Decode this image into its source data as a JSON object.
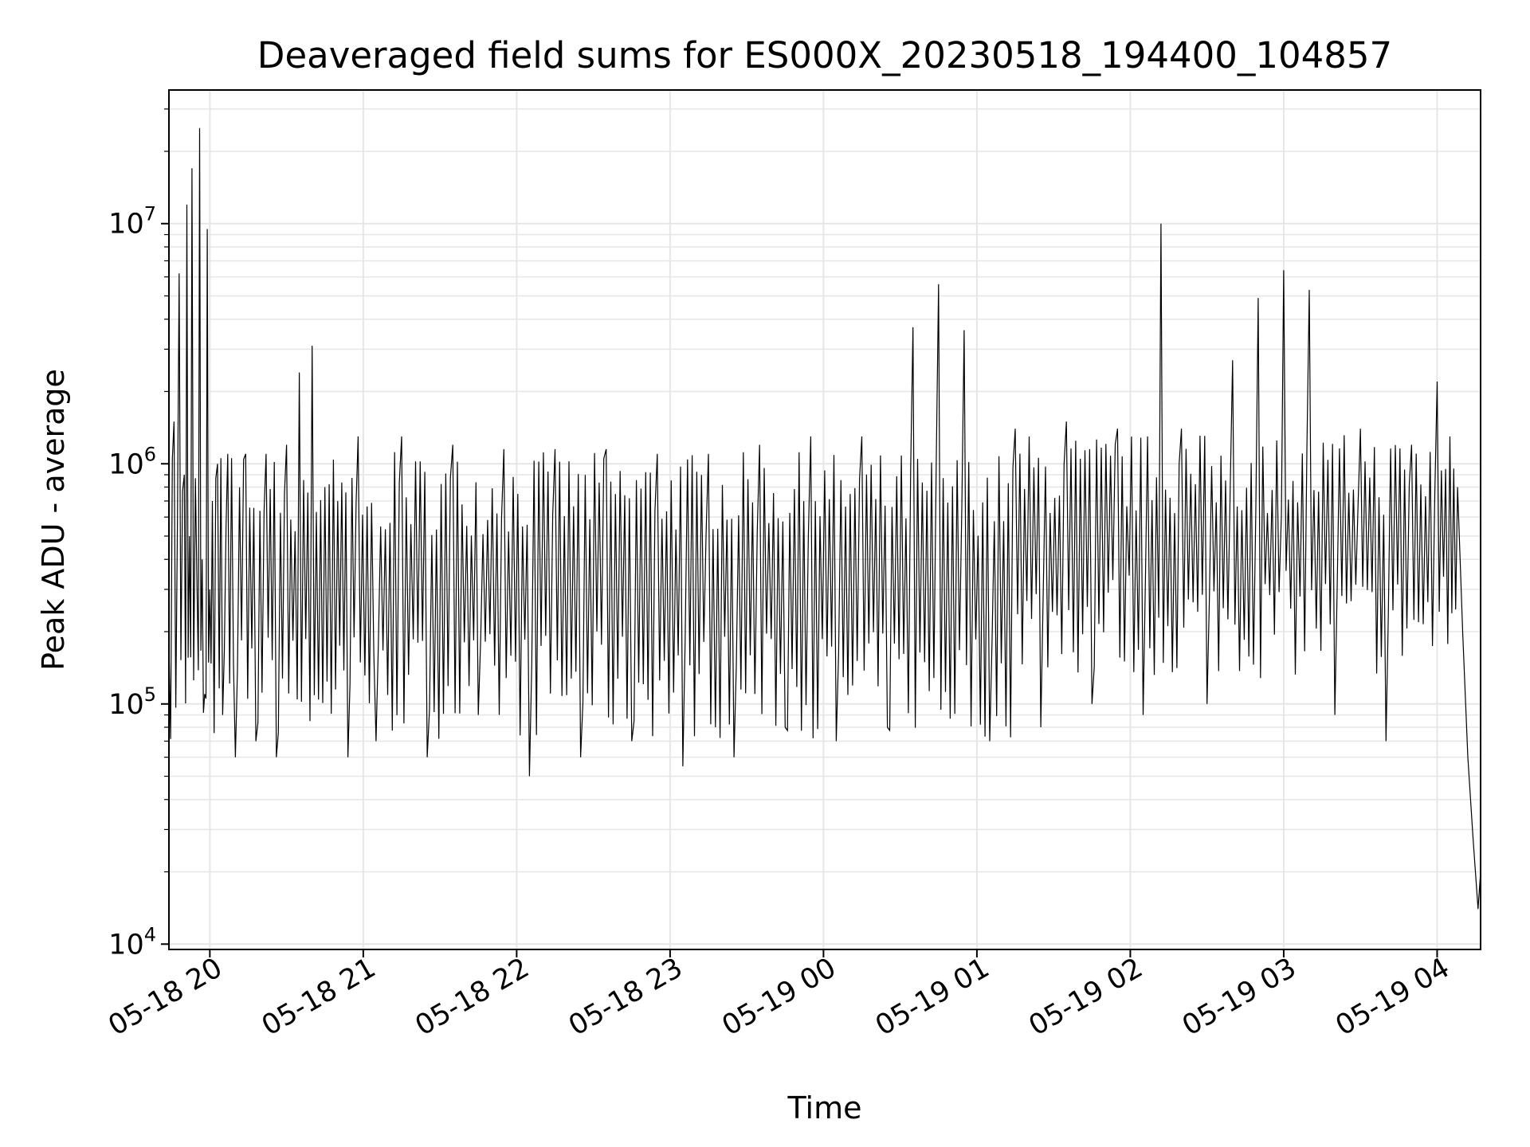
{
  "chart_data": {
    "type": "line",
    "title": "Deaveraged field sums for ES000X_20230518_194400_104857",
    "xlabel": "Time",
    "ylabel": "Peak ADU - average",
    "yscale": "log",
    "ylim": [
      9500,
      36000000
    ],
    "xlim": [
      "2023-05-18 19:44:00",
      "2023-05-19 04:17:00"
    ],
    "grid": true,
    "line_color": "#000000",
    "grid_color": "#e6e6e6",
    "x_ticks": [
      "2023-05-18 20:00",
      "2023-05-18 21:00",
      "2023-05-18 22:00",
      "2023-05-18 23:00",
      "2023-05-19 00:00",
      "2023-05-19 01:00",
      "2023-05-19 02:00",
      "2023-05-19 03:00",
      "2023-05-19 04:00"
    ],
    "x_tick_labels": [
      "05-18 20",
      "05-18 21",
      "05-18 22",
      "05-18 23",
      "05-19 00",
      "05-19 01",
      "05-19 02",
      "05-19 03",
      "05-19 04"
    ],
    "y_ticks": [
      {
        "base": "10",
        "exp": "4",
        "value": 10000
      },
      {
        "base": "10",
        "exp": "5",
        "value": 100000
      },
      {
        "base": "10",
        "exp": "6",
        "value": 1000000
      },
      {
        "base": "10",
        "exp": "7",
        "value": 10000000
      }
    ],
    "series": [
      {
        "x": [
          "2023-05-18 19:44",
          "2023-05-18 19:46",
          "2023-05-18 19:48",
          "2023-05-18 19:50",
          "2023-05-18 19:51",
          "2023-05-18 19:52",
          "2023-05-18 19:53",
          "2023-05-18 19:55",
          "2023-05-18 19:56",
          "2023-05-18 19:57",
          "2023-05-18 19:58",
          "2023-05-18 19:59",
          "2023-05-18 20:00",
          "2023-05-18 20:01",
          "2023-05-18 20:03",
          "2023-05-18 20:05",
          "2023-05-18 20:07",
          "2023-05-18 20:10",
          "2023-05-18 20:14",
          "2023-05-18 20:18",
          "2023-05-18 20:22",
          "2023-05-18 20:26",
          "2023-05-18 20:30",
          "2023-05-18 20:35",
          "2023-05-18 20:40",
          "2023-05-18 20:45",
          "2023-05-18 20:50",
          "2023-05-18 20:54",
          "2023-05-18 20:58",
          "2023-05-18 21:05",
          "2023-05-18 21:15",
          "2023-05-18 21:25",
          "2023-05-18 21:35",
          "2023-05-18 21:45",
          "2023-05-18 21:55",
          "2023-05-18 22:05",
          "2023-05-18 22:15",
          "2023-05-18 22:25",
          "2023-05-18 22:35",
          "2023-05-18 22:45",
          "2023-05-18 22:55",
          "2023-05-18 23:05",
          "2023-05-18 23:15",
          "2023-05-18 23:25",
          "2023-05-18 23:35",
          "2023-05-18 23:45",
          "2023-05-18 23:55",
          "2023-05-19 00:05",
          "2023-05-19 00:15",
          "2023-05-19 00:25",
          "2023-05-19 00:35",
          "2023-05-19 00:45",
          "2023-05-19 00:55",
          "2023-05-19 01:05",
          "2023-05-19 01:15",
          "2023-05-19 01:25",
          "2023-05-19 01:35",
          "2023-05-19 01:45",
          "2023-05-19 01:55",
          "2023-05-19 02:05",
          "2023-05-19 02:12",
          "2023-05-19 02:20",
          "2023-05-19 02:30",
          "2023-05-19 02:40",
          "2023-05-19 02:50",
          "2023-05-19 03:00",
          "2023-05-19 03:10",
          "2023-05-19 03:20",
          "2023-05-19 03:30",
          "2023-05-19 03:40",
          "2023-05-19 03:50",
          "2023-05-19 04:00",
          "2023-05-19 04:05",
          "2023-05-19 04:08",
          "2023-05-19 04:10",
          "2023-05-19 04:12",
          "2023-05-19 04:14",
          "2023-05-19 04:16",
          "2023-05-19 04:17"
        ],
        "y": [
          180000,
          1500000,
          6200000,
          900000,
          12000000,
          500000,
          17000000,
          300000,
          25000000,
          400000,
          110000,
          9500000,
          300000,
          700000,
          1000000,
          90000,
          1100000,
          60000,
          1100000,
          70000,
          1100000,
          60000,
          1200000,
          2400000,
          3100000,
          800000,
          700000,
          60000,
          1300000,
          70000,
          1300000,
          60000,
          1200000,
          90000,
          1150000,
          50000,
          1150000,
          60000,
          1150000,
          70000,
          1100000,
          55000,
          1100000,
          60000,
          1200000,
          80000,
          1300000,
          70000,
          1300000,
          80000,
          3700000,
          5600000,
          3600000,
          70000,
          1400000,
          80000,
          1500000,
          100000,
          1400000,
          90000,
          10000000,
          1400000,
          100000,
          2700000,
          4900000,
          6400000,
          5300000,
          90000,
          1400000,
          70000,
          1200000,
          2200000,
          1300000,
          800000,
          200000,
          60000,
          28000,
          14000,
          20000
        ]
      }
    ]
  }
}
